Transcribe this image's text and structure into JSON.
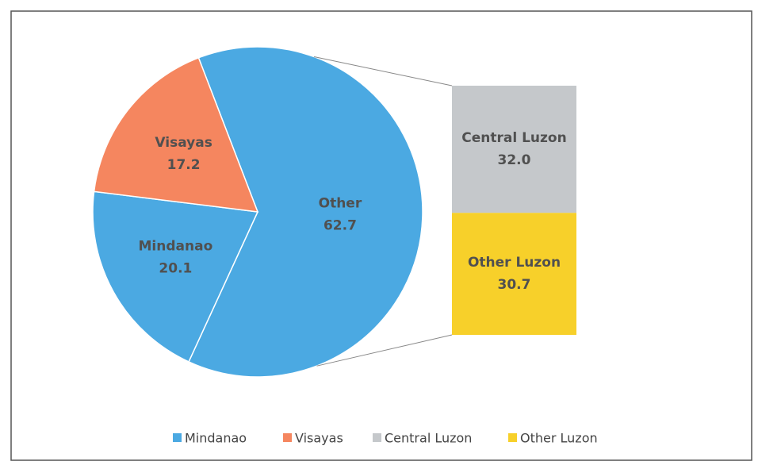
{
  "chart_data": {
    "type": "pie",
    "pie": {
      "categories": [
        "Mindanao",
        "Visayas",
        "Other"
      ],
      "values": [
        20.1,
        17.2,
        62.7
      ],
      "colors": [
        "#4ba9e2",
        "#f5865f",
        "#4ba9e2"
      ]
    },
    "bar": {
      "categories": [
        "Central Luzon",
        "Other Luzon"
      ],
      "values": [
        32,
        30.7
      ],
      "value_labels": [
        "32.0",
        "30.7"
      ],
      "colors": [
        "#c5c8cb",
        "#f7d02a"
      ]
    }
  }
}
